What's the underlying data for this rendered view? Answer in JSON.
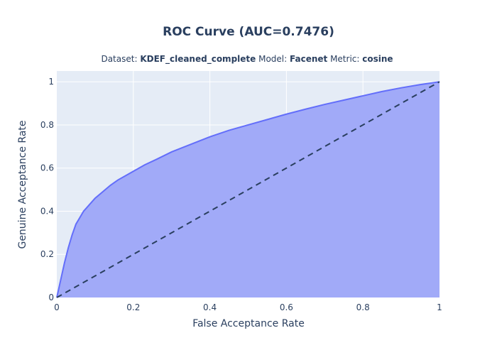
{
  "chart_data": {
    "type": "area",
    "title": "ROC Curve (AUC=0.7476)",
    "subtitle": {
      "dataset_label": "Dataset: ",
      "dataset_value": "KDEF_cleaned_complete",
      "model_label": " Model: ",
      "model_value": "Facenet",
      "metric_label": " Metric: ",
      "metric_value": "cosine"
    },
    "xlabel": "False Acceptance Rate",
    "ylabel": "Genuine Acceptance Rate",
    "xlim": [
      0,
      1
    ],
    "ylim": [
      0,
      1.05
    ],
    "x_ticks": [
      {
        "value": 0,
        "label": "0"
      },
      {
        "value": 0.2,
        "label": "0.2"
      },
      {
        "value": 0.4,
        "label": "0.4"
      },
      {
        "value": 0.6,
        "label": "0.6"
      },
      {
        "value": 0.8,
        "label": "0.8"
      },
      {
        "value": 1,
        "label": "1"
      }
    ],
    "y_ticks": [
      {
        "value": 0,
        "label": "0"
      },
      {
        "value": 0.2,
        "label": "0.2"
      },
      {
        "value": 0.4,
        "label": "0.4"
      },
      {
        "value": 0.6,
        "label": "0.6"
      },
      {
        "value": 0.8,
        "label": "0.8"
      },
      {
        "value": 1,
        "label": "1"
      }
    ],
    "grid": true,
    "colors": {
      "plot_bg": "#e5ecf6",
      "grid": "#ffffff",
      "fill": "#a1aaf8",
      "line": "#636efa",
      "diagonal": "#2a3f5f"
    },
    "series": [
      {
        "x": [
          0,
          0.01,
          0.02,
          0.03,
          0.04,
          0.05,
          0.06,
          0.07,
          0.08,
          0.09,
          0.1,
          0.12,
          0.14,
          0.16,
          0.18,
          0.2,
          0.23,
          0.26,
          0.3,
          0.35,
          0.4,
          0.45,
          0.5,
          0.55,
          0.6,
          0.65,
          0.7,
          0.75,
          0.8,
          0.85,
          0.9,
          0.95,
          1.0
        ],
        "y": [
          0,
          0.08,
          0.16,
          0.23,
          0.29,
          0.34,
          0.37,
          0.4,
          0.42,
          0.44,
          0.46,
          0.49,
          0.52,
          0.545,
          0.565,
          0.585,
          0.615,
          0.64,
          0.675,
          0.71,
          0.745,
          0.775,
          0.8,
          0.825,
          0.85,
          0.873,
          0.895,
          0.915,
          0.935,
          0.955,
          0.972,
          0.987,
          1.0
        ]
      },
      {
        "style": "dashed",
        "x": [
          0,
          1
        ],
        "y": [
          0,
          1
        ]
      }
    ]
  }
}
